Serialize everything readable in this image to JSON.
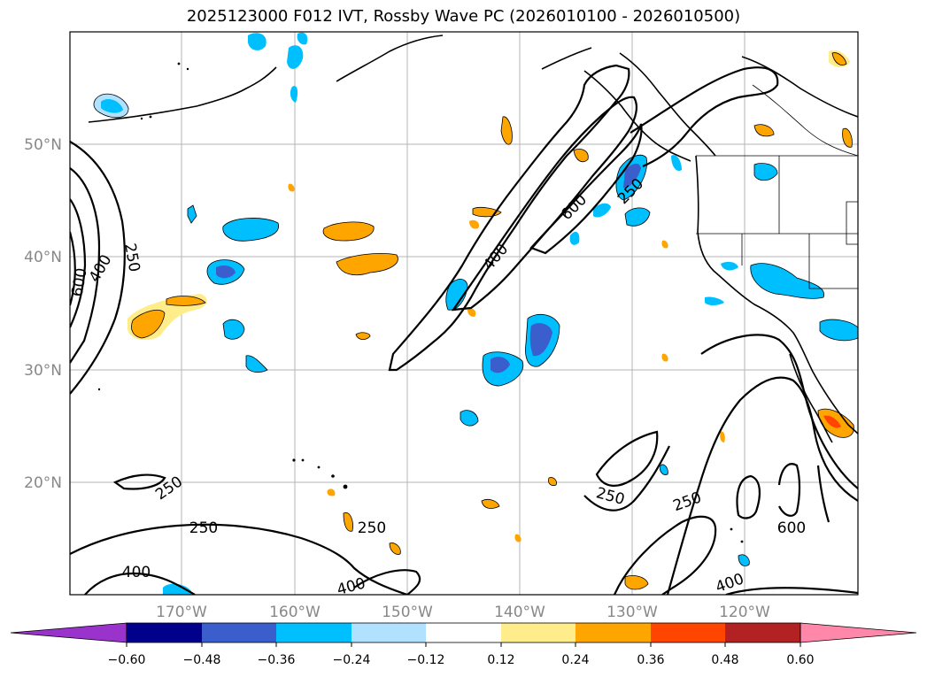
{
  "title": "2025123000 F012 IVT, Rossby Wave PC (2026010100 - 2026010500)",
  "lat_labels": [
    "50°N",
    "40°N",
    "30°N",
    "20°N"
  ],
  "lon_labels": [
    "170°W",
    "160°W",
    "150°W",
    "140°W",
    "130°W",
    "120°W"
  ],
  "contour_labels": [
    "600",
    "400",
    "250",
    "600",
    "400",
    "250",
    "250",
    "250",
    "400",
    "250",
    "250",
    "250",
    "400",
    "600",
    "400"
  ],
  "colorbar": {
    "tick_labels": [
      "−0.60",
      "−0.48",
      "−0.36",
      "−0.24",
      "−0.12",
      "0.12",
      "0.24",
      "0.36",
      "0.48",
      "0.60"
    ],
    "colors": [
      "#9933cc",
      "#00008b",
      "#3a5fcd",
      "#00bfff",
      "#b0e2ff",
      "#ffffff",
      "#ffec8b",
      "#ffa500",
      "#ff4500",
      "#b22222",
      "#ff88aa"
    ]
  }
}
